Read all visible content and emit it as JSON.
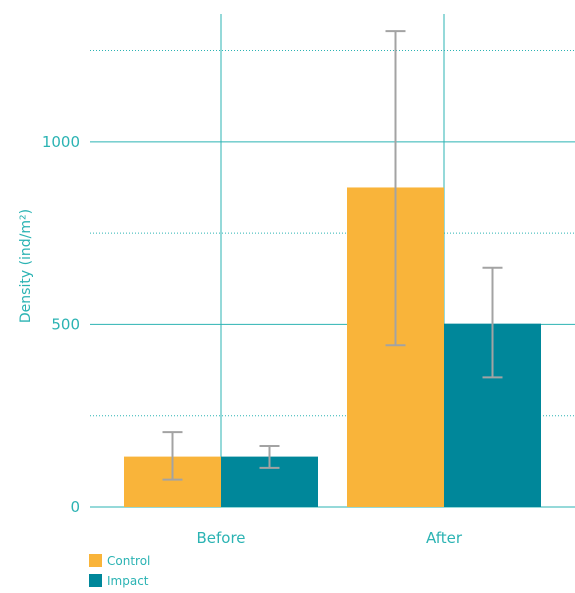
{
  "chart_data": {
    "type": "bar",
    "title": "",
    "xlabel": "",
    "ylabel": "Density (ind/m²)",
    "categories": [
      "Before",
      "After"
    ],
    "series": [
      {
        "name": "Control",
        "color": "#f9b43a",
        "values": [
          138,
          875
        ],
        "error_low": [
          75,
          443
        ],
        "error_high": [
          205,
          1303
        ]
      },
      {
        "name": "Impact",
        "color": "#00879a",
        "values": [
          138,
          502
        ],
        "error_low": [
          107,
          355
        ],
        "error_high": [
          167,
          655
        ]
      }
    ],
    "ylim": [
      0,
      1350
    ],
    "yticks": [
      0,
      500,
      1000
    ],
    "minor_gridlines": [
      250,
      750,
      1250
    ],
    "grid": true,
    "legend_position": "bottom-left",
    "axis_color": "#2bb3b3",
    "error_bar_color": "#a3a3a3"
  }
}
